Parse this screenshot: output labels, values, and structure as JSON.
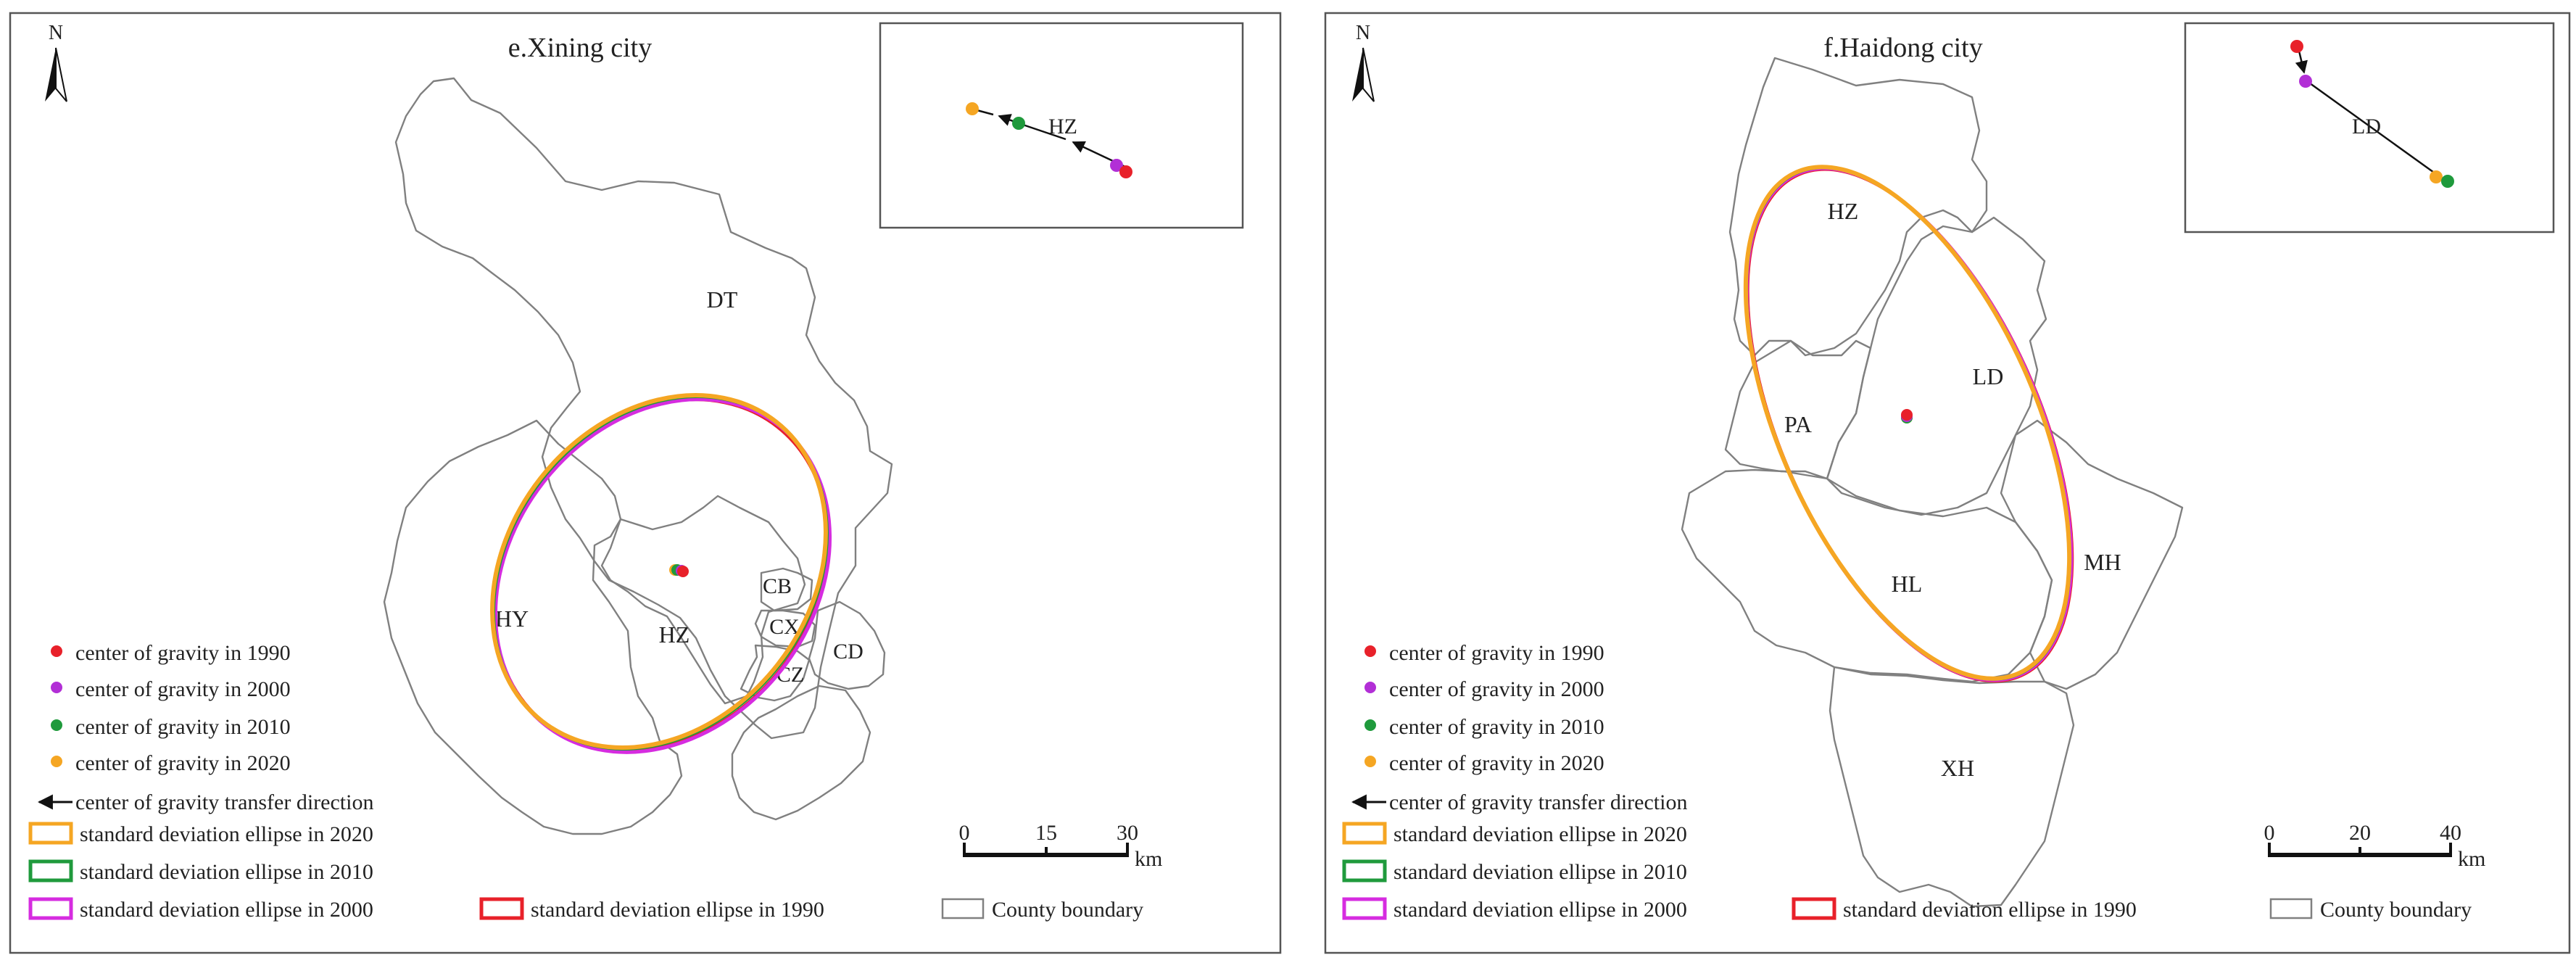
{
  "colors": {
    "c1990": "#e8212a",
    "c2000": "#b22fd6",
    "c2010": "#1f9a3c",
    "c2020": "#f5a623",
    "e2020": "#f5a623",
    "e2010": "#1f9a3c",
    "e2000": "#d62ce0",
    "e1990": "#e8212a",
    "boundary": "#808080"
  },
  "panels": [
    {
      "id": "xining",
      "title": "e.Xining city",
      "north": "N",
      "counties": [
        "DT",
        "HY",
        "HZ",
        "CB",
        "CX",
        "CZ",
        "CD"
      ],
      "inset_label": "HZ",
      "scale": {
        "ticks": [
          "0",
          "15",
          "30"
        ],
        "unit": "km"
      }
    },
    {
      "id": "haidong",
      "title": "f.Haidong city",
      "north": "N",
      "counties": [
        "HZ",
        "LD",
        "PA",
        "HL",
        "MH",
        "XH"
      ],
      "inset_label": "LD",
      "scale": {
        "ticks": [
          "0",
          "20",
          "40"
        ],
        "unit": "km"
      }
    }
  ],
  "legend": {
    "g1990": "center of  gravity in 1990",
    "g2000": "center of  gravity in 2000",
    "g2010": "center of  gravity in 2010",
    "g2020": "center of  gravity in 2020",
    "transfer": "center of  gravity transfer direction",
    "e2020": "standard deviation ellipse in 2020",
    "e2010": "standard deviation ellipse in 2010",
    "e2000": "standard deviation ellipse in 2000",
    "e1990": "standard deviation ellipse in 1990",
    "county": "County  boundary"
  }
}
